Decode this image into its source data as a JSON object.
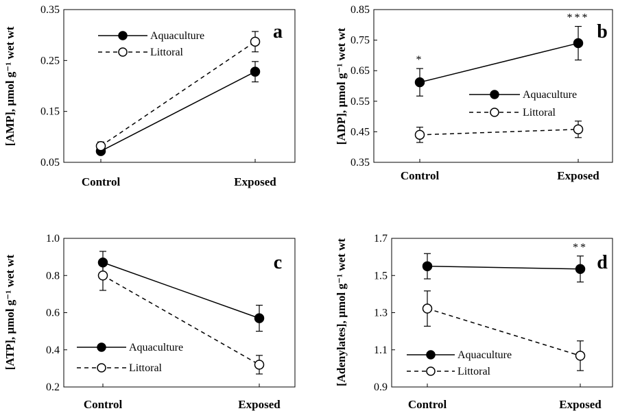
{
  "figure": {
    "colors": {
      "ink": "#000000",
      "open_fill": "#ffffff",
      "frame": "#000000"
    },
    "series_names": [
      "Aquaculture",
      "Littoral"
    ]
  },
  "chart_data": [
    {
      "type": "line",
      "panel": "a",
      "categories": [
        "Control",
        "Exposed"
      ],
      "ylabel": "[AMP],  µmol g⁻¹ wet wt",
      "ylim": [
        0.05,
        0.35
      ],
      "yticks": [
        "0.05",
        "0.15",
        "0.25",
        "0.35"
      ],
      "legend_position": "top-left",
      "series": [
        {
          "name": "Aquaculture",
          "marker": "filled",
          "line": "solid",
          "values": [
            0.072,
            0.228
          ],
          "errors": [
            0.005,
            0.02
          ],
          "sig_labels": [
            "",
            ""
          ]
        },
        {
          "name": "Littoral",
          "marker": "open",
          "line": "dashed",
          "values": [
            0.082,
            0.287
          ],
          "errors": [
            0.008,
            0.02
          ],
          "sig_labels": [
            "",
            ""
          ]
        }
      ]
    },
    {
      "type": "line",
      "panel": "b",
      "categories": [
        "Control",
        "Exposed"
      ],
      "ylabel": "[ADP],  µmol g⁻¹ wet wt",
      "ylim": [
        0.35,
        0.85
      ],
      "yticks": [
        "0.35",
        "0.45",
        "0.55",
        "0.65",
        "0.75",
        "0.85"
      ],
      "legend_position": "middle-right",
      "series": [
        {
          "name": "Aquaculture",
          "marker": "filled",
          "line": "solid",
          "values": [
            0.612,
            0.74
          ],
          "errors": [
            0.045,
            0.055
          ],
          "sig_labels": [
            "*",
            "***"
          ]
        },
        {
          "name": "Littoral",
          "marker": "open",
          "line": "dashed",
          "values": [
            0.44,
            0.458
          ],
          "errors": [
            0.025,
            0.027
          ],
          "sig_labels": [
            "",
            ""
          ]
        }
      ]
    },
    {
      "type": "line",
      "panel": "c",
      "categories": [
        "Control",
        "Exposed"
      ],
      "ylabel": "[ATP],  µmol g⁻¹ wet wt",
      "ylim": [
        0.2,
        1.0
      ],
      "yticks": [
        "0.2",
        "0.4",
        "0.6",
        "0.8",
        "1.0"
      ],
      "legend_position": "bottom-left",
      "series": [
        {
          "name": "Aquaculture",
          "marker": "filled",
          "line": "solid",
          "values": [
            0.87,
            0.57
          ],
          "errors": [
            0.06,
            0.07
          ],
          "sig_labels": [
            "",
            ""
          ]
        },
        {
          "name": "Littoral",
          "marker": "open",
          "line": "dashed",
          "values": [
            0.8,
            0.32
          ],
          "errors": [
            0.08,
            0.05
          ],
          "sig_labels": [
            "",
            ""
          ]
        }
      ]
    },
    {
      "type": "line",
      "panel": "d",
      "categories": [
        "Control",
        "Exposed"
      ],
      "ylabel": "[Adenylates],  µmol g⁻¹ wet wt",
      "ylim": [
        0.9,
        1.7
      ],
      "yticks": [
        "0.9",
        "1.1",
        "1.3",
        "1.5",
        "1.7"
      ],
      "legend_position": "bottom-left",
      "series": [
        {
          "name": "Aquaculture",
          "marker": "filled",
          "line": "solid",
          "values": [
            1.55,
            1.535
          ],
          "errors": [
            0.068,
            0.07
          ],
          "sig_labels": [
            "",
            "**"
          ]
        },
        {
          "name": "Littoral",
          "marker": "open",
          "line": "dashed",
          "values": [
            1.322,
            1.068
          ],
          "errors": [
            0.095,
            0.08
          ],
          "sig_labels": [
            "",
            ""
          ]
        }
      ]
    }
  ]
}
